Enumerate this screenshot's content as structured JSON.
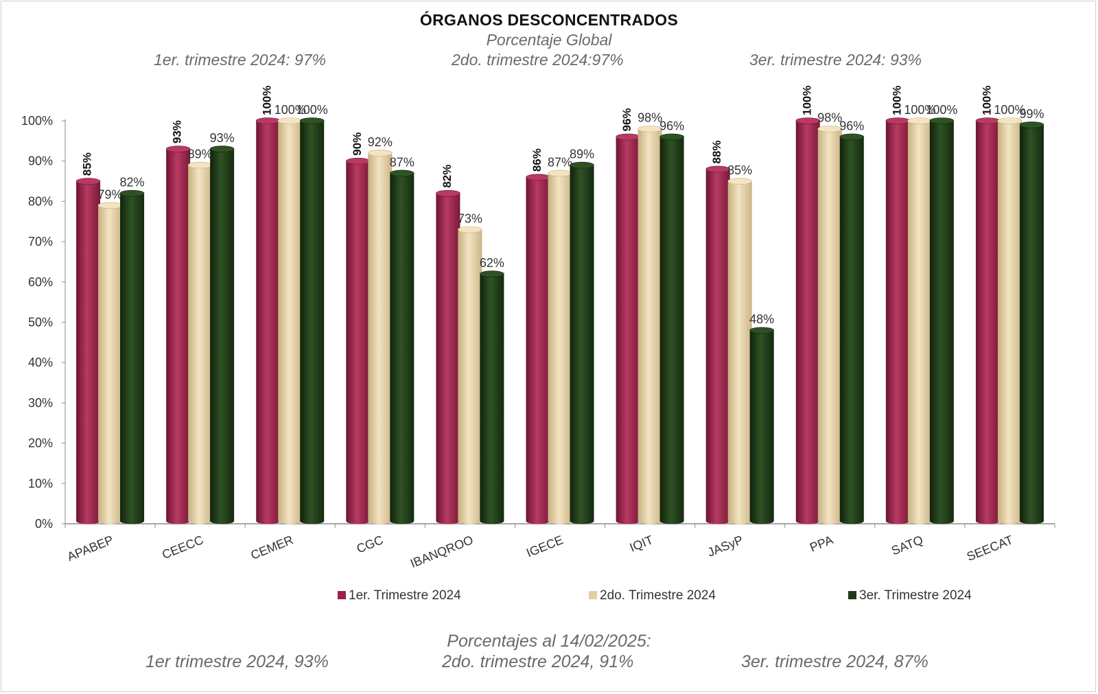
{
  "header": {
    "title": "ÓRGANOS DESCONCENTRADOS",
    "subtitle": "Porcentaje Global",
    "quarters": [
      "1er. trimestre 2024: 97%",
      "2do. trimestre 2024:97%",
      "3er. trimestre 2024: 93%"
    ]
  },
  "footer": {
    "title": "Porcentajes al 14/02/2025:",
    "items": [
      "1er trimestre  2024,  93%",
      "2do. trimestre 2024, 91%",
      "3er. trimestre 2024, 87%"
    ]
  },
  "colors": {
    "q1": "#9b1f47",
    "q2": "#e4cfa2",
    "q3": "#1e3a17"
  },
  "chart_data": {
    "type": "bar",
    "title": "ÓRGANOS DESCONCENTRADOS",
    "categories": [
      "APABEP",
      "CEECC",
      "CEMER",
      "CGC",
      "IBANQROO",
      "IGECE",
      "IQIT",
      "JASyP",
      "PPA",
      "SATQ",
      "SEECAT"
    ],
    "series": [
      {
        "name": "1er. Trimestre 2024",
        "values": [
          85,
          93,
          100,
          90,
          82,
          86,
          96,
          88,
          100,
          100,
          100
        ]
      },
      {
        "name": "2do. Trimestre 2024",
        "values": [
          79,
          89,
          100,
          92,
          73,
          87,
          98,
          85,
          98,
          100,
          100
        ]
      },
      {
        "name": "3er. Trimestre 2024",
        "values": [
          82,
          93,
          100,
          87,
          62,
          89,
          96,
          48,
          96,
          100,
          99
        ]
      }
    ],
    "y_ticks": [
      "0%",
      "10%",
      "20%",
      "30%",
      "40%",
      "50%",
      "60%",
      "70%",
      "80%",
      "90%",
      "100%"
    ],
    "ylim": [
      0,
      100
    ],
    "grid": false,
    "legend_position": "bottom"
  }
}
